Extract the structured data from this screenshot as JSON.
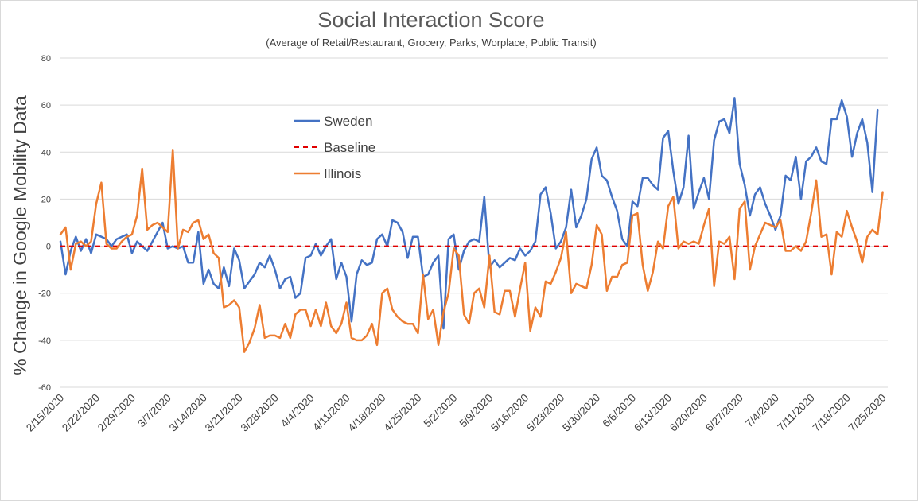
{
  "chart_data": {
    "type": "line",
    "title": "Social Interaction Score",
    "subtitle": "(Average of Retail/Restaurant, Grocery, Parks, Worplace,  Public Transit)",
    "ylabel": "% Change in Google Mobility Data",
    "xlabel": "",
    "ylim": [
      -60,
      80
    ],
    "yticks": [
      80,
      60,
      40,
      20,
      0,
      -20,
      -40,
      -60
    ],
    "grid": true,
    "legend_position": "upper-left-inside",
    "x_start": "2/15/2020",
    "x_end": "7/26/2020",
    "xticks": [
      "2/15/2020",
      "2/22/2020",
      "2/29/2020",
      "3/7/2020",
      "3/14/2020",
      "3/21/2020",
      "3/28/2020",
      "4/4/2020",
      "4/11/2020",
      "4/18/2020",
      "4/25/2020",
      "5/2/2020",
      "5/9/2020",
      "5/16/2020",
      "5/23/2020",
      "5/30/2020",
      "6/6/2020",
      "6/13/2020",
      "6/20/2020",
      "6/27/2020",
      "7/4/2020",
      "7/11/2020",
      "7/18/2020",
      "7/25/2020"
    ],
    "series": [
      {
        "name": "Sweden",
        "color": "#4472c4",
        "style": "solid",
        "values": [
          2,
          -12,
          -2,
          4,
          -2,
          3,
          -3,
          5,
          4,
          3,
          0,
          3,
          4,
          5,
          -3,
          2,
          0,
          -2,
          2,
          6,
          10,
          -1,
          0,
          -1,
          0,
          -7,
          -7,
          6,
          -16,
          -10,
          -16,
          -18,
          -9,
          -17,
          -1,
          -6,
          -18,
          -15,
          -12,
          -7,
          -9,
          -4,
          -10,
          -18,
          -14,
          -13,
          -22,
          -20,
          -5,
          -4,
          1,
          -4,
          0,
          3,
          -14,
          -7,
          -13,
          -32,
          -12,
          -6,
          -8,
          -7,
          3,
          5,
          0,
          11,
          10,
          6,
          -5,
          4,
          4,
          -13,
          -12,
          -7,
          -4,
          -35,
          3,
          5,
          -10,
          -2,
          2,
          3,
          2,
          21,
          -9,
          -6,
          -9,
          -7,
          -5,
          -6,
          -1,
          -4,
          -2,
          2,
          22,
          25,
          14,
          -1,
          2,
          8,
          24,
          8,
          13,
          20,
          37,
          42,
          30,
          28,
          21,
          15,
          3,
          0,
          19,
          17,
          29,
          29,
          26,
          24,
          46,
          49,
          32,
          18,
          25,
          47,
          16,
          23,
          29,
          20,
          45,
          53,
          54,
          48,
          63,
          35,
          26,
          13,
          22,
          25,
          18,
          13,
          7,
          13,
          30,
          28,
          38,
          20,
          36,
          38,
          42,
          36,
          35,
          54,
          54,
          62,
          55,
          38,
          48,
          54,
          44,
          23,
          58
        ]
      },
      {
        "name": "Baseline",
        "color": "#e00000",
        "style": "dashed",
        "values": [
          0,
          0
        ]
      },
      {
        "name": "Illinois",
        "color": "#ed7d31",
        "style": "solid",
        "values": [
          5,
          8,
          -10,
          1,
          2,
          0,
          2,
          18,
          27,
          1,
          -1,
          -1,
          2,
          4,
          5,
          13,
          33,
          7,
          9,
          10,
          8,
          6,
          41,
          -1,
          7,
          6,
          10,
          11,
          3,
          5,
          -3,
          -5,
          -26,
          -25,
          -23,
          -26,
          -45,
          -41,
          -35,
          -25,
          -39,
          -38,
          -38,
          -39,
          -33,
          -39,
          -29,
          -27,
          -27,
          -34,
          -27,
          -34,
          -24,
          -34,
          -37,
          -33,
          -24,
          -39,
          -40,
          -40,
          -38,
          -33,
          -42,
          -20,
          -18,
          -27,
          -30,
          -32,
          -33,
          -33,
          -37,
          -12,
          -31,
          -27,
          -42,
          -28,
          -20,
          -1,
          -4,
          -29,
          -33,
          -20,
          -18,
          -26,
          -4,
          -28,
          -29,
          -19,
          -19,
          -30,
          -18,
          -7,
          -36,
          -26,
          -30,
          -15,
          -16,
          -11,
          -5,
          6,
          -20,
          -16,
          -17,
          -18,
          -8,
          9,
          5,
          -19,
          -13,
          -13,
          -8,
          -7,
          13,
          14,
          -8,
          -19,
          -11,
          2,
          -1,
          17,
          21,
          -1,
          2,
          1,
          2,
          1,
          9,
          16,
          -17,
          2,
          1,
          4,
          -14,
          16,
          19,
          -10,
          0,
          5,
          10,
          9,
          8,
          11,
          -2,
          -2,
          0,
          -2,
          2,
          14,
          28,
          4,
          5,
          -12,
          6,
          4,
          15,
          8,
          2,
          -7,
          4,
          7,
          5,
          23
        ]
      }
    ]
  }
}
